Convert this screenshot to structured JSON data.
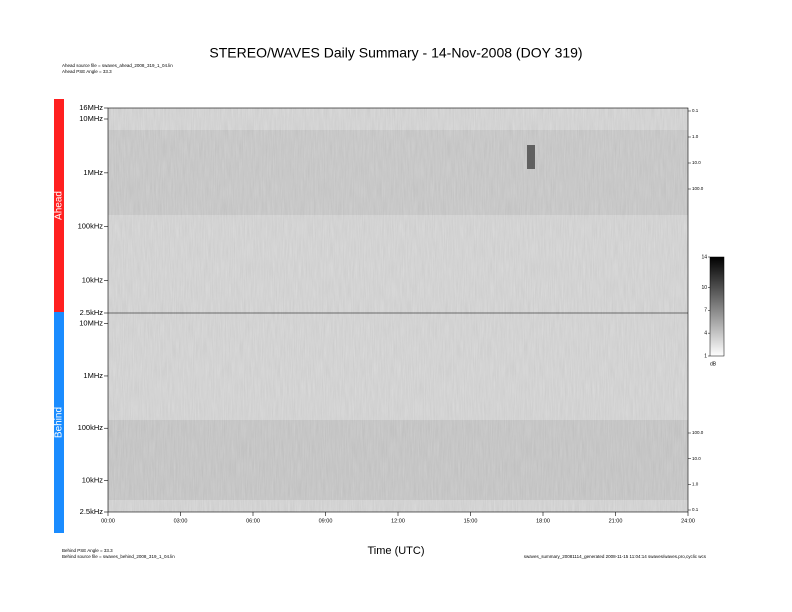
{
  "chart_data": {
    "type": "spectrogram",
    "title": "STEREO/WAVES Daily Summary - 14-Nov-2008 (DOY 319)",
    "notes_top": [
      "Ahead source file = swaves_ahead_2008_319_1_04.lin",
      "Ahead PSE Angle = 33.3"
    ],
    "notes_bottom": [
      "Behind PSE Angle = 33.3",
      "Behind source file = swaves_behind_2008_319_1_04.lin"
    ],
    "footer": "swaves_summary_20081114_generated 2008-11-15 11:04:14 swaves/waves.pro,cyclic wcs",
    "xlabel": "Time (UTC)",
    "xlim": [
      0,
      24
    ],
    "xticks": [
      {
        "value": 0,
        "label": "00:00"
      },
      {
        "value": 3,
        "label": "03:00"
      },
      {
        "value": 6,
        "label": "06:00"
      },
      {
        "value": 9,
        "label": "09:00"
      },
      {
        "value": 12,
        "label": "12:00"
      },
      {
        "value": 15,
        "label": "15:00"
      },
      {
        "value": 18,
        "label": "18:00"
      },
      {
        "value": 21,
        "label": "21:00"
      },
      {
        "value": 24,
        "label": "24:00"
      }
    ],
    "log_y": true,
    "panels": [
      {
        "name": "Ahead",
        "color": "#ff2020",
        "reversed": false,
        "ylim": [
          2500,
          16000000
        ],
        "yticks": [
          {
            "value": 2500,
            "label": "2.5kHz"
          },
          {
            "value": 10000,
            "label": "10kHz"
          },
          {
            "value": 100000,
            "label": "100kHz"
          },
          {
            "value": 1000000,
            "label": "1MHz"
          },
          {
            "value": 10000000,
            "label": "10MHz"
          },
          {
            "value": 16000000,
            "label": "16MHz"
          }
        ],
        "y2lim": [
          0.1,
          100
        ],
        "y2ticks": [
          0.1,
          {
            "value": 1,
            "label": "1.0"
          },
          {
            "value": 10,
            "label": "10.0"
          },
          {
            "value": 100,
            "label": "100.0"
          }
        ]
      },
      {
        "name": "Behind",
        "color": "#1a8cff",
        "reversed": true,
        "ylim": [
          2500,
          16000000
        ],
        "yticks": [
          {
            "value": 10000000,
            "label": "10MHz"
          },
          {
            "value": 1000000,
            "label": "1MHz"
          },
          {
            "value": 100000,
            "label": "100kHz"
          },
          {
            "value": 10000,
            "label": "10kHz"
          },
          {
            "value": 2500,
            "label": "2.5kHz"
          }
        ],
        "y2lim": [
          0.1,
          100
        ],
        "y2ticks": [
          {
            "value": 100,
            "label": "100.0"
          },
          {
            "value": 10,
            "label": "10.0"
          },
          {
            "value": 1,
            "label": "1.0"
          },
          0.1
        ]
      }
    ],
    "colorbar": {
      "clim": [
        1,
        14
      ],
      "ticks": [
        14,
        10,
        7,
        4,
        1
      ],
      "label": "dB"
    }
  }
}
